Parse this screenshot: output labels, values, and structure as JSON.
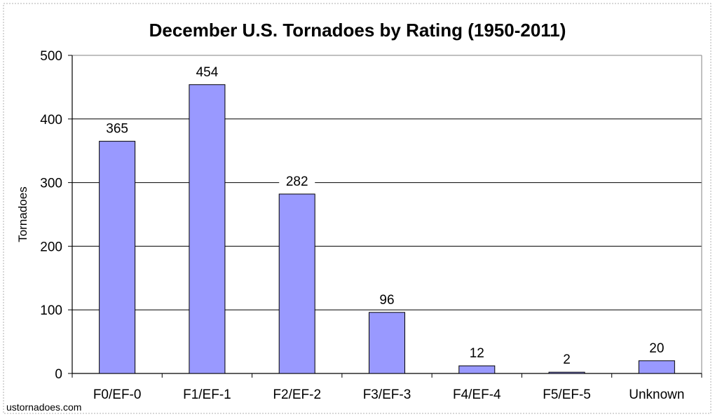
{
  "chart_data": {
    "type": "bar",
    "title": "December U.S. Tornadoes by Rating (1950-2011)",
    "xlabel": "",
    "ylabel": "Tornadoes",
    "categories": [
      "F0/EF-0",
      "F1/EF-1",
      "F2/EF-2",
      "F3/EF-3",
      "F4/EF-4",
      "F5/EF-5",
      "Unknown"
    ],
    "values": [
      365,
      454,
      282,
      96,
      12,
      2,
      20
    ],
    "data_labels": [
      "365",
      "454",
      "282",
      "96",
      "12",
      "2",
      "20"
    ],
    "ylim": [
      0,
      500
    ],
    "yticks": [
      "0",
      "100",
      "200",
      "300",
      "400",
      "500"
    ],
    "grid": true,
    "legend": "none",
    "bar_color": "#9999ff",
    "bar_edge_color": "#000000"
  },
  "credit": "ustornadoes.com"
}
